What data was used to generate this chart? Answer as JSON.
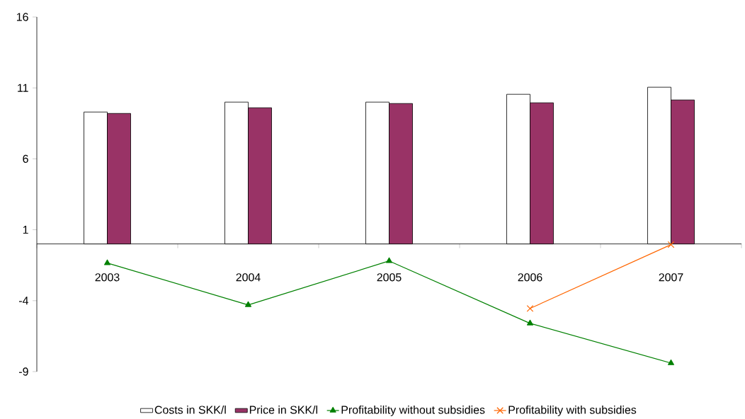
{
  "chart_data": {
    "type": "bar",
    "categories": [
      "2003",
      "2004",
      "2005",
      "2006",
      "2007"
    ],
    "series": [
      {
        "name": "Costs in SKK/l",
        "color": "#ffffff",
        "values": [
          9.3,
          10.0,
          10.0,
          10.55,
          11.05
        ]
      },
      {
        "name": "Price in SKK/l",
        "color": "#993366",
        "values": [
          9.2,
          9.6,
          9.9,
          9.95,
          10.15
        ]
      },
      {
        "name": "Profitability without subsidies",
        "type": "line",
        "color": "#008000",
        "marker": "triangle",
        "values": [
          -1.35,
          -4.3,
          -1.2,
          -5.6,
          -8.4
        ]
      },
      {
        "name": "Profitability with subsidies",
        "type": "line",
        "color": "#ff6600",
        "marker": "cross",
        "values": [
          null,
          null,
          null,
          -4.55,
          -0.05
        ]
      }
    ],
    "ylim": [
      -9,
      16
    ],
    "yticks": [
      -9,
      -4,
      1,
      6,
      11,
      16
    ],
    "legend": "bottom"
  }
}
